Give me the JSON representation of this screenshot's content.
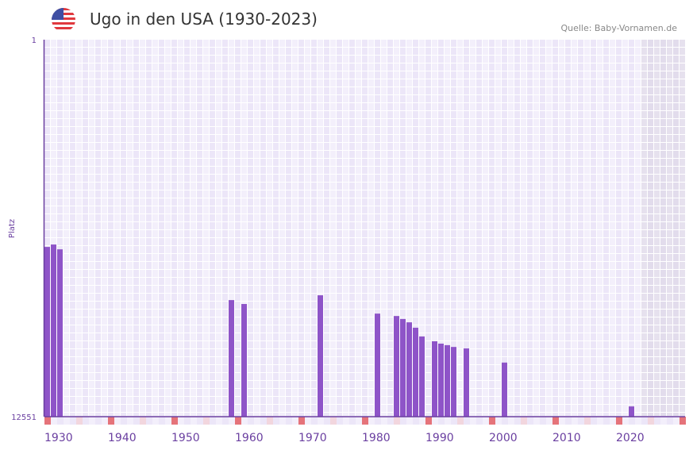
{
  "header": {
    "title": "Ugo in den USA (1930-2023)",
    "source": "Quelle: Baby-Vornamen.de",
    "flag_icon": "usa-flag-icon"
  },
  "colors": {
    "bar": "#8e54c8",
    "axis": "#6a3fa0",
    "decade_tick": "#e5737a",
    "half_decade_tick": "#f2d6de",
    "future_area": "#e2dcec"
  },
  "chart_data": {
    "type": "bar",
    "title": "Ugo in den USA (1930-2023)",
    "xlabel": "",
    "ylabel": "Platz",
    "y_inverted": true,
    "ylim": [
      1,
      12551
    ],
    "xlim": [
      1930,
      2030
    ],
    "y_tick_labels": [
      "1",
      "12551"
    ],
    "x_tick_labels": [
      "1930",
      "1940",
      "1950",
      "1960",
      "1970",
      "1980",
      "1990",
      "2000",
      "2010",
      "2020"
    ],
    "x_ticks": [
      1930,
      1940,
      1950,
      1960,
      1970,
      1980,
      1990,
      2000,
      2010,
      2020
    ],
    "data_end_year": 2023,
    "points": [
      {
        "year": 1930,
        "rank": 6900
      },
      {
        "year": 1931,
        "rank": 6820
      },
      {
        "year": 1932,
        "rank": 6980
      },
      {
        "year": 1959,
        "rank": 8670
      },
      {
        "year": 1961,
        "rank": 8800
      },
      {
        "year": 1973,
        "rank": 8510
      },
      {
        "year": 1982,
        "rank": 9120
      },
      {
        "year": 1985,
        "rank": 9200
      },
      {
        "year": 1986,
        "rank": 9300
      },
      {
        "year": 1987,
        "rank": 9410
      },
      {
        "year": 1988,
        "rank": 9590
      },
      {
        "year": 1989,
        "rank": 9880
      },
      {
        "year": 1991,
        "rank": 10040
      },
      {
        "year": 1992,
        "rank": 10120
      },
      {
        "year": 1993,
        "rank": 10170
      },
      {
        "year": 1994,
        "rank": 10230
      },
      {
        "year": 1996,
        "rank": 10280
      },
      {
        "year": 2002,
        "rank": 10750
      },
      {
        "year": 2022,
        "rank": 12210
      }
    ]
  }
}
